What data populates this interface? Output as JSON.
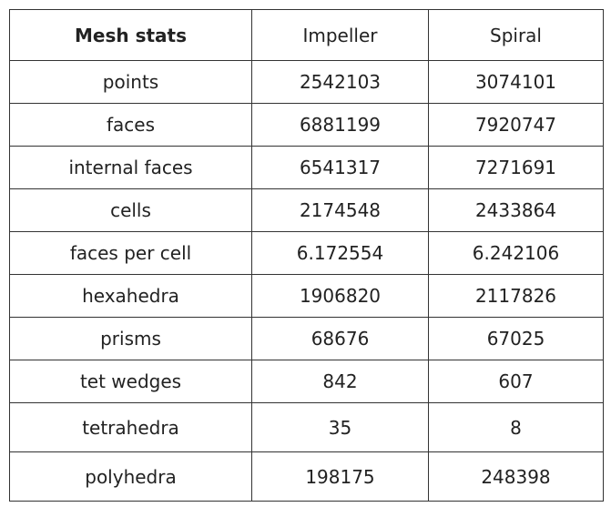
{
  "table": {
    "header": [
      "Mesh stats",
      "Impeller",
      "Spiral"
    ],
    "rows": [
      [
        "points",
        "2542103",
        "3074101"
      ],
      [
        "faces",
        "6881199",
        "7920747"
      ],
      [
        "internal faces",
        "6541317",
        "7271691"
      ],
      [
        "cells",
        "2174548",
        "2433864"
      ],
      [
        "faces per cell",
        "6.172554",
        "6.242106"
      ],
      [
        "hexahedra",
        "1906820",
        "2117826"
      ],
      [
        "prisms",
        "68676",
        "67025"
      ],
      [
        "tet wedges",
        "842",
        "607"
      ],
      [
        "tetrahedra",
        "35",
        "8"
      ],
      [
        "polyhedra",
        "198175",
        "248398"
      ]
    ]
  }
}
